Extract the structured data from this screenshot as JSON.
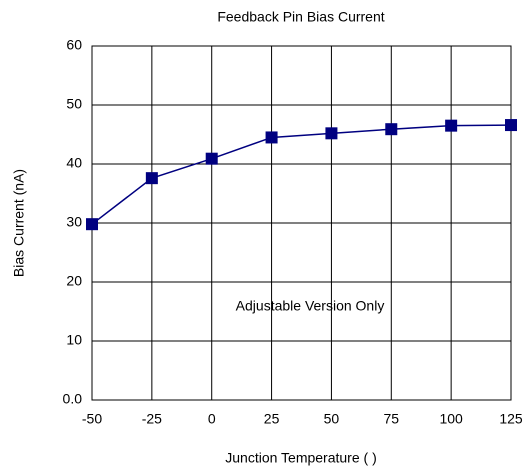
{
  "chart_data": {
    "type": "line",
    "title": "Feedback Pin Bias Current",
    "x_label": "Junction Temperature (   )",
    "y_label": "Bias Current (nA)",
    "annotation": "Adjustable Version Only",
    "x": [
      -50,
      -25,
      0,
      25,
      50,
      75,
      100,
      125
    ],
    "series": [
      {
        "name": "Bias Current",
        "color": "#000080",
        "values": [
          29.8,
          37.6,
          40.9,
          44.5,
          45.2,
          45.9,
          46.5,
          46.6
        ]
      }
    ],
    "xlim": [
      -50,
      125
    ],
    "xticks": [
      -50,
      -25,
      0,
      25,
      50,
      75,
      100,
      125
    ],
    "ylim": [
      0,
      60
    ],
    "yticks": [
      {
        "value": 0,
        "label": "0.0"
      },
      10,
      20,
      30,
      40,
      50,
      60
    ],
    "grid": true
  }
}
